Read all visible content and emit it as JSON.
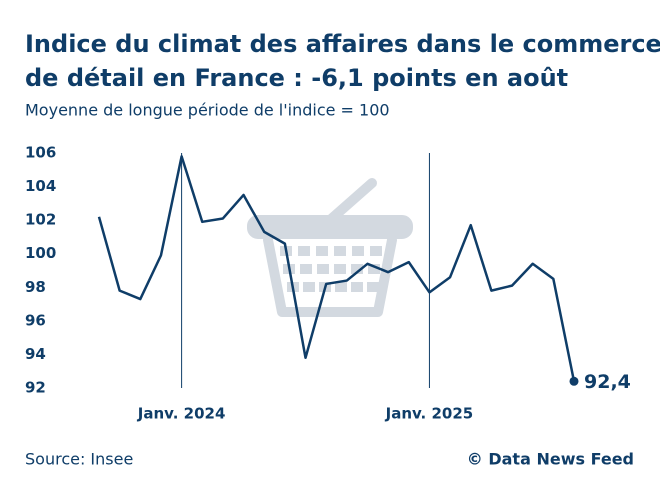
{
  "chart_data": {
    "type": "line",
    "title": "Indice du climat des affaires dans le commerce",
    "title_line2": "de détail en France : -6,1 points en août",
    "subtitle": "Moyenne de longue période de l'indice = 100",
    "categories": [
      null,
      null,
      null,
      null,
      "Janv. 2024",
      null,
      null,
      null,
      null,
      null,
      null,
      null,
      null,
      null,
      null,
      null,
      "Janv. 2025",
      null,
      null,
      null,
      null,
      null,
      null,
      null
    ],
    "values": [
      102.2,
      97.8,
      97.3,
      99.9,
      105.8,
      101.9,
      102.1,
      103.5,
      101.3,
      100.6,
      93.8,
      98.2,
      98.4,
      99.4,
      98.9,
      99.5,
      97.7,
      98.6,
      101.7,
      97.8,
      98.1,
      99.4,
      98.5,
      92.4
    ],
    "value_labels": [
      null,
      null,
      null,
      null,
      null,
      null,
      null,
      null,
      null,
      null,
      null,
      null,
      null,
      null,
      null,
      null,
      null,
      null,
      null,
      null,
      null,
      null,
      null,
      "92,4"
    ],
    "color": "#0f3d68",
    "ylim": [
      92,
      106
    ],
    "yticks": [
      92,
      94,
      96,
      98,
      100,
      102,
      104,
      106
    ],
    "grid": false,
    "source": "Source: Insee",
    "credit": "© Data News Feed"
  }
}
